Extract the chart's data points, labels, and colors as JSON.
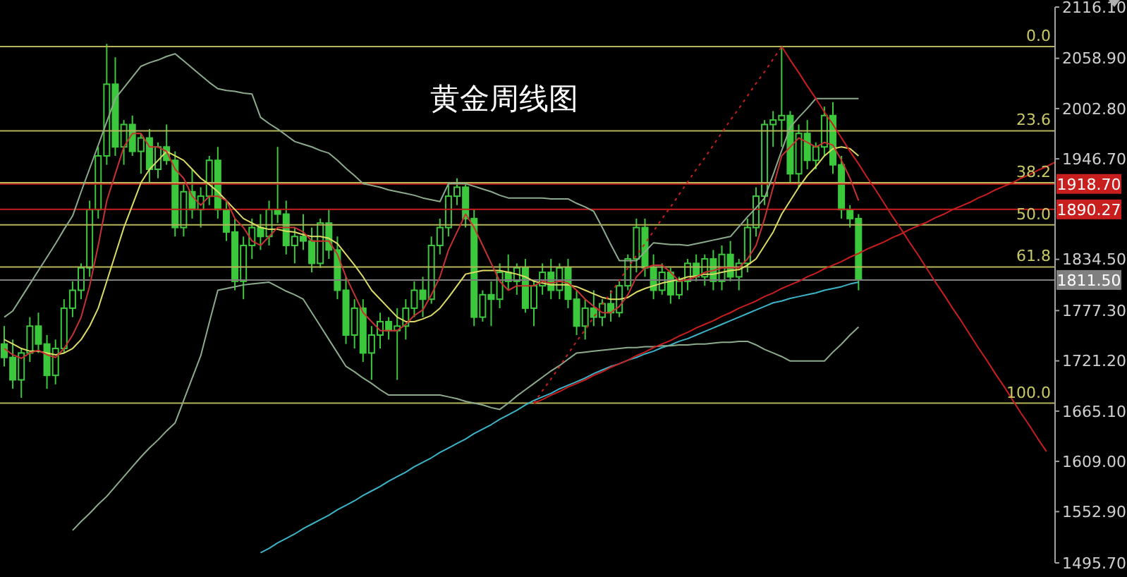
{
  "chart_data": {
    "type": "candlestick",
    "title": "黄金周线图",
    "color": "#3cc83c",
    "categories": [
      null,
      null,
      null,
      null,
      null,
      null,
      null,
      null,
      null,
      null,
      null,
      null,
      null,
      null,
      null,
      null,
      null,
      null,
      null,
      null,
      null,
      null,
      null,
      null,
      null,
      null,
      null,
      null,
      null,
      null,
      null,
      null,
      null,
      null,
      null,
      null,
      null,
      null,
      null,
      null,
      null,
      null,
      null,
      null,
      null,
      null,
      null,
      null,
      null,
      null,
      null,
      null,
      null,
      null,
      null,
      null,
      null,
      null,
      null,
      null,
      null,
      null,
      null,
      null,
      null,
      null,
      null,
      null,
      null,
      null,
      null,
      null,
      null,
      null,
      null,
      null,
      null,
      null,
      null,
      null,
      null,
      null,
      null,
      null,
      null,
      null,
      null,
      null,
      null,
      null,
      null,
      null,
      null,
      null,
      null,
      null,
      null,
      null,
      null,
      null,
      null,
      null,
      null,
      null,
      null,
      null,
      null,
      null,
      null,
      null,
      null,
      null,
      null,
      null,
      null,
      null,
      null,
      null,
      null,
      null,
      null,
      null,
      null,
      null
    ],
    "ohlc": [
      [
        1740,
        1760,
        1715,
        1725
      ],
      [
        1725,
        1745,
        1690,
        1700
      ],
      [
        1700,
        1735,
        1680,
        1730
      ],
      [
        1730,
        1770,
        1720,
        1760
      ],
      [
        1760,
        1775,
        1730,
        1740
      ],
      [
        1740,
        1750,
        1690,
        1705
      ],
      [
        1705,
        1745,
        1695,
        1735
      ],
      [
        1735,
        1790,
        1730,
        1780
      ],
      [
        1780,
        1810,
        1770,
        1800
      ],
      [
        1800,
        1830,
        1790,
        1825
      ],
      [
        1825,
        1900,
        1815,
        1890
      ],
      [
        1890,
        1960,
        1880,
        1950
      ],
      [
        1950,
        2075,
        1940,
        2030
      ],
      [
        2030,
        2060,
        1950,
        1960
      ],
      [
        1960,
        1990,
        1940,
        1985
      ],
      [
        1985,
        1995,
        1950,
        1955
      ],
      [
        1955,
        1975,
        1930,
        1970
      ],
      [
        1970,
        1980,
        1920,
        1935
      ],
      [
        1935,
        1965,
        1925,
        1960
      ],
      [
        1960,
        1985,
        1940,
        1945
      ],
      [
        1945,
        1955,
        1860,
        1870
      ],
      [
        1870,
        1920,
        1860,
        1910
      ],
      [
        1910,
        1935,
        1880,
        1890
      ],
      [
        1890,
        1915,
        1870,
        1905
      ],
      [
        1905,
        1950,
        1895,
        1945
      ],
      [
        1945,
        1960,
        1880,
        1890
      ],
      [
        1890,
        1900,
        1855,
        1865
      ],
      [
        1865,
        1880,
        1800,
        1810
      ],
      [
        1810,
        1860,
        1790,
        1850
      ],
      [
        1850,
        1880,
        1835,
        1870
      ],
      [
        1870,
        1885,
        1845,
        1860
      ],
      [
        1860,
        1900,
        1850,
        1890
      ],
      [
        1890,
        1960,
        1875,
        1885
      ],
      [
        1885,
        1900,
        1840,
        1850
      ],
      [
        1850,
        1870,
        1830,
        1860
      ],
      [
        1860,
        1885,
        1845,
        1855
      ],
      [
        1855,
        1870,
        1820,
        1830
      ],
      [
        1830,
        1880,
        1825,
        1875
      ],
      [
        1875,
        1890,
        1835,
        1845
      ],
      [
        1845,
        1860,
        1790,
        1800
      ],
      [
        1800,
        1815,
        1740,
        1750
      ],
      [
        1750,
        1790,
        1735,
        1780
      ],
      [
        1780,
        1790,
        1720,
        1730
      ],
      [
        1730,
        1760,
        1700,
        1750
      ],
      [
        1750,
        1775,
        1735,
        1765
      ],
      [
        1765,
        1770,
        1745,
        1755
      ],
      [
        1755,
        1780,
        1700,
        1760
      ],
      [
        1760,
        1790,
        1745,
        1780
      ],
      [
        1780,
        1810,
        1770,
        1800
      ],
      [
        1800,
        1815,
        1770,
        1790
      ],
      [
        1790,
        1860,
        1785,
        1850
      ],
      [
        1850,
        1880,
        1840,
        1870
      ],
      [
        1870,
        1920,
        1860,
        1905
      ],
      [
        1905,
        1925,
        1895,
        1915
      ],
      [
        1915,
        1920,
        1870,
        1880
      ],
      [
        1880,
        1890,
        1760,
        1770
      ],
      [
        1770,
        1800,
        1765,
        1795
      ],
      [
        1795,
        1810,
        1760,
        1790
      ],
      [
        1790,
        1830,
        1780,
        1820
      ],
      [
        1820,
        1840,
        1800,
        1810
      ],
      [
        1810,
        1830,
        1795,
        1825
      ],
      [
        1825,
        1835,
        1775,
        1780
      ],
      [
        1780,
        1810,
        1760,
        1805
      ],
      [
        1805,
        1830,
        1795,
        1820
      ],
      [
        1820,
        1835,
        1790,
        1800
      ],
      [
        1800,
        1830,
        1790,
        1825
      ],
      [
        1825,
        1835,
        1780,
        1790
      ],
      [
        1790,
        1800,
        1750,
        1760
      ],
      [
        1760,
        1790,
        1745,
        1780
      ],
      [
        1780,
        1800,
        1760,
        1770
      ],
      [
        1770,
        1790,
        1760,
        1785
      ],
      [
        1785,
        1800,
        1765,
        1775
      ],
      [
        1775,
        1810,
        1770,
        1805
      ],
      [
        1805,
        1840,
        1800,
        1835
      ],
      [
        1835,
        1880,
        1820,
        1870
      ],
      [
        1870,
        1880,
        1815,
        1825
      ],
      [
        1825,
        1840,
        1790,
        1800
      ],
      [
        1800,
        1830,
        1795,
        1820
      ],
      [
        1820,
        1825,
        1785,
        1795
      ],
      [
        1795,
        1815,
        1790,
        1810
      ],
      [
        1810,
        1835,
        1800,
        1830
      ],
      [
        1830,
        1840,
        1810,
        1815
      ],
      [
        1815,
        1840,
        1805,
        1835
      ],
      [
        1835,
        1845,
        1800,
        1810
      ],
      [
        1810,
        1850,
        1800,
        1840
      ],
      [
        1840,
        1855,
        1810,
        1815
      ],
      [
        1815,
        1835,
        1800,
        1830
      ],
      [
        1830,
        1880,
        1820,
        1870
      ],
      [
        1870,
        1915,
        1860,
        1905
      ],
      [
        1905,
        1990,
        1895,
        1985
      ],
      [
        1985,
        2000,
        1960,
        1990
      ],
      [
        1990,
        2072,
        1960,
        1995
      ],
      [
        1995,
        2000,
        1920,
        1930
      ],
      [
        1930,
        1985,
        1915,
        1975
      ],
      [
        1975,
        1990,
        1935,
        1945
      ],
      [
        1945,
        1965,
        1935,
        1960
      ],
      [
        1960,
        2005,
        1950,
        1995
      ],
      [
        1995,
        2010,
        1930,
        1940
      ],
      [
        1940,
        1950,
        1880,
        1890
      ],
      [
        1890,
        1895,
        1870,
        1880
      ],
      [
        1880,
        1885,
        1800,
        1811.5
      ],
      null,
      null,
      null,
      null,
      null,
      null,
      null,
      null,
      null,
      null,
      null,
      null,
      null,
      null,
      null,
      null,
      null,
      null,
      null,
      null,
      null,
      null,
      null
    ],
    "series": [
      {
        "type": "line",
        "color": "#3cb4c8",
        "values": [
          null,
          null,
          null,
          null,
          null,
          null,
          null,
          null,
          null,
          null,
          null,
          null,
          null,
          null,
          null,
          null,
          null,
          null,
          null,
          null,
          null,
          null,
          null,
          null,
          null,
          null,
          null,
          null,
          null,
          null,
          1507,
          1512,
          1518,
          1523,
          1528,
          1534,
          1539,
          1544,
          1549,
          1555,
          1560,
          1565,
          1571,
          1576,
          1581,
          1587,
          1592,
          1597,
          1603,
          1608,
          1613,
          1619,
          1624,
          1629,
          1634,
          1640,
          1645,
          1650,
          1656,
          1661,
          1666,
          1672,
          1677,
          1681,
          1685,
          1690,
          1694,
          1698,
          1702,
          1707,
          1711,
          1715,
          1718,
          1722,
          1725,
          1729,
          1732,
          1736,
          1739,
          1743,
          1746,
          1750,
          1754,
          1758,
          1762,
          1766,
          1770,
          1774,
          1778,
          1782,
          1786,
          1788,
          1791,
          1793,
          1795,
          1797,
          1800,
          1802,
          1804,
          1807,
          1809,
          null,
          null,
          null,
          null,
          null,
          null,
          null,
          null,
          null,
          null,
          null,
          null,
          null,
          null,
          null,
          null,
          null,
          null,
          null,
          null,
          null,
          null,
          null
        ]
      },
      {
        "type": "line",
        "color": "#8caa8c",
        "values": [
          1770,
          1777,
          1792,
          1807,
          1822,
          1837,
          1852,
          1868,
          1883,
          1910,
          1936,
          1962,
          1988,
          2014,
          2026,
          2038,
          2050,
          2054,
          2057,
          2061,
          2064,
          2056,
          2048,
          2040,
          2032,
          2025,
          2023,
          2022,
          2020,
          2019,
          1993,
          1986,
          1980,
          1973,
          1966,
          1963,
          1960,
          1956,
          1953,
          1945,
          1936,
          1928,
          1919,
          1917,
          1915,
          1912,
          1910,
          1908,
          1906,
          1903,
          1901,
          1899,
          1919,
          1919,
          1919,
          1916,
          1913,
          1910,
          1906,
          1903,
          1903,
          1903,
          1903,
          1903,
          1902,
          1902,
          1902,
          1897,
          1893,
          1888,
          1870,
          1851,
          1833,
          1833,
          1833,
          1843,
          1853,
          1852,
          1851,
          1851,
          1850,
          1852,
          1854,
          1856,
          1858,
          1860,
          1871,
          1882,
          1892,
          1903,
          1929,
          1956,
          1982,
          1993,
          2003,
          2014,
          2014,
          2014,
          2014,
          2014,
          2014,
          null,
          null,
          null,
          null,
          null,
          null,
          null,
          null,
          null,
          null,
          null,
          null,
          null,
          null,
          null,
          null,
          null,
          null,
          null,
          null,
          null,
          null,
          null
        ]
      },
      {
        "type": "line",
        "color": "#8caa8c",
        "values": [
          null,
          null,
          null,
          null,
          null,
          null,
          null,
          null,
          1532,
          1542,
          1551,
          1561,
          1570,
          1581,
          1592,
          1603,
          1614,
          1624,
          1633,
          1643,
          1652,
          1677,
          1702,
          1727,
          1764,
          1800,
          1802,
          1804,
          1806,
          1807,
          1808,
          1809,
          1804,
          1799,
          1795,
          1790,
          1775,
          1760,
          1745,
          1730,
          1715,
          1709,
          1702,
          1696,
          1689,
          1683,
          1683,
          1683,
          1683,
          1683,
          1683,
          1683,
          1681,
          1679,
          1676,
          1674,
          1672,
          1669,
          1667,
          1674,
          1682,
          1689,
          1696,
          1703,
          1710,
          1716,
          1723,
          1730,
          1731,
          1732,
          1733,
          1734,
          1735,
          1736,
          1736,
          1737,
          1737,
          1738,
          1738,
          1739,
          1739,
          1740,
          1740,
          1741,
          1742,
          1742,
          1743,
          1743,
          1739,
          1734,
          1730,
          1726,
          1721,
          1721,
          1721,
          1721,
          1721,
          1731,
          1740,
          1750,
          1759,
          null,
          null,
          null,
          null,
          null,
          null,
          null,
          null,
          null,
          null,
          null,
          null,
          null,
          null,
          null,
          null,
          null,
          null,
          null,
          null,
          null,
          null,
          null
        ]
      },
      {
        "type": "line",
        "color": "#dcdc64",
        "values": [
          1745,
          1740,
          1735,
          1732,
          1732,
          1730,
          1728,
          1730,
          1735,
          1745,
          1760,
          1780,
          1810,
          1840,
          1870,
          1895,
          1920,
          1935,
          1945,
          1955,
          1950,
          1945,
          1935,
          1925,
          1918,
          1910,
          1900,
          1890,
          1880,
          1875,
          1870,
          1868,
          1868,
          1866,
          1865,
          1862,
          1860,
          1860,
          1858,
          1852,
          1840,
          1828,
          1815,
          1800,
          1790,
          1780,
          1770,
          1765,
          1765,
          1768,
          1772,
          1780,
          1792,
          1805,
          1818,
          1820,
          1822,
          1822,
          1822,
          1820,
          1818,
          1815,
          1810,
          1808,
          1806,
          1806,
          1806,
          1804,
          1800,
          1796,
          1792,
          1790,
          1790,
          1792,
          1798,
          1802,
          1805,
          1808,
          1810,
          1812,
          1815,
          1816,
          1818,
          1818,
          1820,
          1822,
          1823,
          1828,
          1835,
          1850,
          1865,
          1885,
          1900,
          1915,
          1928,
          1938,
          1950,
          1958,
          1960,
          1958,
          1950,
          null,
          null,
          null,
          null,
          null,
          null,
          null,
          null,
          null,
          null,
          null,
          null,
          null,
          null,
          null,
          null,
          null,
          null,
          null,
          null,
          null,
          null,
          null
        ]
      },
      {
        "type": "line",
        "color": "#c83232",
        "values": [
          1735,
          1728,
          1724,
          1730,
          1733,
          1728,
          1725,
          1735,
          1750,
          1770,
          1805,
          1850,
          1900,
          1930,
          1960,
          1975,
          1975,
          1960,
          1960,
          1955,
          1935,
          1925,
          1905,
          1895,
          1905,
          1905,
          1900,
          1880,
          1870,
          1855,
          1850,
          1860,
          1870,
          1870,
          1870,
          1865,
          1855,
          1855,
          1855,
          1840,
          1815,
          1795,
          1775,
          1765,
          1755,
          1755,
          1755,
          1762,
          1772,
          1778,
          1795,
          1815,
          1845,
          1865,
          1885,
          1870,
          1850,
          1830,
          1810,
          1800,
          1805,
          1805,
          1805,
          1810,
          1808,
          1810,
          1808,
          1800,
          1790,
          1782,
          1775,
          1775,
          1782,
          1795,
          1815,
          1825,
          1828,
          1828,
          1820,
          1810,
          1812,
          1815,
          1820,
          1822,
          1825,
          1825,
          1825,
          1835,
          1850,
          1880,
          1915,
          1950,
          1960,
          1970,
          1965,
          1960,
          1965,
          1962,
          1945,
          1925,
          1900,
          null,
          null,
          null,
          null,
          null,
          null,
          null,
          null,
          null,
          null,
          null,
          null,
          null,
          null,
          null,
          null,
          null,
          null,
          null,
          null,
          null,
          null,
          null
        ]
      },
      {
        "type": "line",
        "color": "#c81e1e",
        "values": [
          null,
          null,
          null,
          null,
          null,
          null,
          null,
          null,
          null,
          null,
          null,
          null,
          null,
          null,
          null,
          null,
          null,
          null,
          null,
          null,
          null,
          null,
          null,
          null,
          null,
          null,
          null,
          null,
          null,
          null,
          null,
          null,
          null,
          null,
          null,
          null,
          null,
          null,
          null,
          null,
          null,
          null,
          null,
          null,
          null,
          null,
          null,
          null,
          null,
          null,
          null,
          null,
          null,
          null,
          null,
          null,
          null,
          null,
          null,
          null,
          null,
          null,
          1674,
          1678,
          1683,
          1687,
          1692,
          1696,
          1700,
          1705,
          1709,
          1714,
          1718,
          1722,
          1727,
          1731,
          1736,
          1740,
          1744,
          1749,
          1753,
          1758,
          1762,
          1766,
          1771,
          1775,
          1780,
          1784,
          1788,
          1793,
          1797,
          1802,
          1806,
          1810,
          1815,
          1819,
          1824,
          1828,
          1832,
          1837,
          1841,
          1846,
          1850,
          1854,
          1859,
          1863,
          1868,
          1872,
          1876,
          1881,
          1885,
          1890,
          1894,
          1898,
          1903,
          1907,
          1912,
          1916,
          1920,
          1925,
          1929,
          1934,
          1938,
          1943
        ]
      },
      {
        "type": "line",
        "color": "#c81e1e",
        "values": [
          null,
          null,
          null,
          null,
          null,
          null,
          null,
          null,
          null,
          null,
          null,
          null,
          null,
          null,
          null,
          null,
          null,
          null,
          null,
          null,
          null,
          null,
          null,
          null,
          null,
          null,
          null,
          null,
          null,
          null,
          null,
          null,
          null,
          null,
          null,
          null,
          null,
          null,
          null,
          null,
          null,
          null,
          null,
          null,
          null,
          null,
          null,
          null,
          null,
          null,
          null,
          null,
          null,
          null,
          null,
          null,
          null,
          null,
          null,
          null,
          null,
          null,
          null,
          null,
          null,
          null,
          null,
          null,
          null,
          null,
          null,
          null,
          null,
          null,
          null,
          null,
          null,
          null,
          null,
          null,
          null,
          null,
          null,
          null,
          null,
          null,
          null,
          null,
          null,
          null,
          null,
          2072,
          2057,
          2043,
          2028,
          2014,
          1999,
          1985,
          1970,
          1955,
          1941,
          1926,
          1912,
          1897,
          1882,
          1868,
          1853,
          1839,
          1824,
          1809,
          1795,
          1780,
          1766,
          1751,
          1736,
          1722,
          1707,
          1693,
          1678,
          1663,
          1649,
          1634,
          1620,
          null
        ]
      },
      {
        "type": "line",
        "color": "#c81e1e",
        "line_style": "dotted",
        "values": [
          null,
          null,
          null,
          null,
          null,
          null,
          null,
          null,
          null,
          null,
          null,
          null,
          null,
          null,
          null,
          null,
          null,
          null,
          null,
          null,
          null,
          null,
          null,
          null,
          null,
          null,
          null,
          null,
          null,
          null,
          null,
          null,
          null,
          null,
          null,
          null,
          null,
          null,
          null,
          null,
          null,
          null,
          null,
          null,
          null,
          null,
          null,
          null,
          null,
          null,
          null,
          null,
          null,
          null,
          null,
          null,
          null,
          null,
          null,
          null,
          null,
          null,
          1674,
          1688,
          1701,
          1715,
          1729,
          1743,
          1756,
          1770,
          1784,
          1797,
          1811,
          1825,
          1839,
          1852,
          1866,
          1880,
          1893,
          1907,
          1921,
          1935,
          1948,
          1962,
          1976,
          1990,
          2003,
          2017,
          2031,
          2044,
          2058,
          2072,
          null,
          null,
          null,
          null,
          null,
          null,
          null,
          null,
          null,
          null,
          null,
          null,
          null,
          null,
          null,
          null,
          null,
          null,
          null,
          null,
          null,
          null,
          null,
          null,
          null,
          null,
          null,
          null,
          null,
          null,
          null,
          null
        ]
      }
    ],
    "ylim": [
      1495.7,
      2116.1
    ],
    "yticks": [
      {
        "value": 2116.1,
        "label": "2116.10"
      },
      {
        "value": 2058.9,
        "label": "2058.90"
      },
      {
        "value": 2002.8,
        "label": "2002.80"
      },
      {
        "value": 1946.7,
        "label": "1946.70"
      },
      {
        "value": 1834.5,
        "label": "1834.50"
      },
      {
        "value": 1777.3,
        "label": "1777.30"
      },
      {
        "value": 1721.2,
        "label": "1721.20"
      },
      {
        "value": 1665.1,
        "label": "1665.10"
      },
      {
        "value": 1609,
        "label": "1609.00"
      },
      {
        "value": 1552.9,
        "label": "1552.90"
      },
      {
        "value": 1495.7,
        "label": "1495.70"
      }
    ],
    "ref_lines": [
      {
        "axis": "y",
        "value": 1918.7,
        "label": "1918.70",
        "color": "#c81e1e"
      },
      {
        "axis": "y",
        "value": 1890.27,
        "label": "1890.27",
        "color": "#c81e1e"
      },
      {
        "axis": "y",
        "value": 1811.5,
        "label": "1811.50",
        "color": "#808080"
      },
      {
        "axis": "y",
        "value": 2072,
        "color": "#b4b45a"
      },
      {
        "axis": "y",
        "value": 1978,
        "color": "#b4b45a"
      },
      {
        "axis": "y",
        "value": 1920,
        "color": "#b4b45a"
      },
      {
        "axis": "y",
        "value": 1873,
        "color": "#b4b45a"
      },
      {
        "axis": "y",
        "value": 1826,
        "color": "#b4b45a"
      },
      {
        "axis": "y",
        "value": 1674,
        "color": "#b4b45a"
      }
    ],
    "annotations": [
      {
        "text": "0.0",
        "y": 2072
      },
      {
        "text": "23.6",
        "y": 1978
      },
      {
        "text": "38.2",
        "y": 1920
      },
      {
        "text": "50.0",
        "y": 1873
      },
      {
        "text": "61.8",
        "y": 1826
      },
      {
        "text": "100.0",
        "y": 1674
      }
    ]
  }
}
